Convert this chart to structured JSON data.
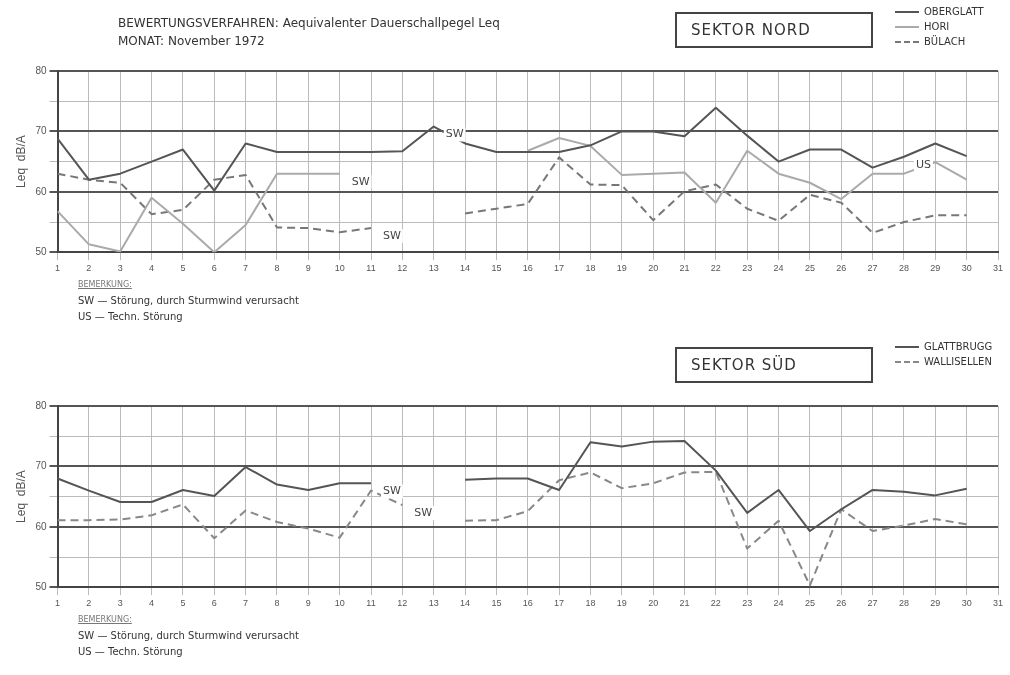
{
  "chart_data": [
    {
      "type": "line",
      "title": "SEKTOR NORD",
      "subtitle": "BEWERTUNGSVERFAHREN: Aequivalenter Dauerschallpegel Leq\nMONAT:   November 1972",
      "ylabel": "Leq  dB/A",
      "x": [
        1,
        2,
        3,
        4,
        5,
        6,
        7,
        8,
        9,
        10,
        11,
        12,
        13,
        14,
        15,
        16,
        17,
        18,
        19,
        20,
        21,
        22,
        23,
        24,
        25,
        26,
        27,
        28,
        29,
        30
      ],
      "series": [
        {
          "name": "OBERGLATT",
          "color": "#555555",
          "line_style": "solid",
          "values": [
            68.8,
            62,
            63,
            65,
            67,
            60.2,
            68,
            66.6,
            66.6,
            66.6,
            66.6,
            66.7,
            70.8,
            68,
            66.6,
            66.6,
            66.6,
            67.7,
            70,
            70,
            69.2,
            73.9,
            69.3,
            65,
            67,
            67,
            64,
            65.8,
            68,
            65.9
          ]
        },
        {
          "name": "HORI",
          "color": "#aaaaaa",
          "line_style": "solid",
          "values": [
            56.8,
            51.3,
            50.1,
            59,
            54.7,
            50,
            54.5,
            63,
            63,
            63,
            null,
            null,
            null,
            null,
            null,
            66.8,
            68.9,
            67.6,
            62.8,
            63,
            63.2,
            58.2,
            66.8,
            63,
            61.5,
            58.8,
            63,
            63,
            64.9,
            62
          ]
        },
        {
          "name": "BÜLACH",
          "color": "#777777",
          "line_style": "dashed",
          "values": [
            63,
            62,
            61.5,
            56.3,
            57,
            62,
            62.8,
            54.1,
            54,
            53.3,
            54,
            null,
            null,
            56.4,
            57.2,
            58,
            65.7,
            61.2,
            61.1,
            55.3,
            60.1,
            61.2,
            57.2,
            55.2,
            59.5,
            58.2,
            53.2,
            55,
            56.1,
            56.1
          ]
        }
      ],
      "xlim": [
        1,
        31
      ],
      "xticks": [
        1,
        2,
        3,
        4,
        5,
        6,
        7,
        8,
        9,
        10,
        11,
        12,
        13,
        14,
        15,
        16,
        17,
        18,
        19,
        20,
        21,
        22,
        23,
        24,
        25,
        26,
        27,
        28,
        29,
        30,
        31
      ],
      "ylim": [
        50,
        80
      ],
      "yticks": [
        50,
        {
          "value": 55,
          "label": null
        },
        60,
        {
          "value": 65,
          "label": null
        },
        70,
        {
          "value": 75,
          "label": null
        },
        80
      ],
      "grid": true,
      "legend": "top right",
      "marker": "none",
      "annotations": [
        {
          "text": "SW",
          "x": 10,
          "y": 63
        },
        {
          "text": "SW",
          "x": 11,
          "y": 54
        },
        {
          "text": "SW",
          "x": 13,
          "y": 70.8
        },
        {
          "text": "US",
          "x": 28,
          "y": 65.8
        },
        "BEMERKUNG:",
        "SW — Störung, durch Sturmwind verursacht",
        "US — Techn. Störung"
      ]
    },
    {
      "type": "line",
      "title": "SEKTOR SÜD",
      "ylabel": "Leq  dB/A",
      "x": [
        1,
        2,
        3,
        4,
        5,
        6,
        7,
        8,
        9,
        10,
        11,
        12,
        13,
        14,
        15,
        16,
        17,
        18,
        19,
        20,
        21,
        22,
        23,
        24,
        25,
        26,
        27,
        28,
        29,
        30
      ],
      "series": [
        {
          "name": "GLATTBRUGG",
          "color": "#555555",
          "line_style": "solid",
          "values": [
            68,
            66,
            64.1,
            64.1,
            66.1,
            65.1,
            69.9,
            67,
            66.1,
            67.2,
            67.2,
            null,
            null,
            67.8,
            68,
            68,
            66.1,
            74,
            73.3,
            74.1,
            74.2,
            69.3,
            62.3,
            66.1,
            59.3,
            62.9,
            66.1,
            65.8,
            65.2,
            66.3
          ]
        },
        {
          "name": "WALLISELLEN",
          "color": "#888888",
          "line_style": "dashed",
          "values": [
            61.1,
            61.1,
            61.2,
            61.9,
            63.7,
            58.1,
            62.7,
            60.8,
            59.7,
            58.2,
            66,
            63.6,
            null,
            61,
            61.1,
            62.6,
            67.7,
            69,
            66.4,
            67.2,
            69,
            69.1,
            56.4,
            61,
            50.3,
            62.9,
            59.3,
            60.2,
            61.3,
            60.4
          ]
        }
      ],
      "xlim": [
        1,
        31
      ],
      "xticks": [
        1,
        2,
        3,
        4,
        5,
        6,
        7,
        8,
        9,
        10,
        11,
        12,
        13,
        14,
        15,
        16,
        17,
        18,
        19,
        20,
        21,
        22,
        23,
        24,
        25,
        26,
        27,
        28,
        29,
        30,
        31
      ],
      "ylim": [
        50,
        80
      ],
      "yticks": [
        50,
        {
          "value": 55,
          "label": null
        },
        60,
        {
          "value": 65,
          "label": null
        },
        70,
        {
          "value": 75,
          "label": null
        },
        80
      ],
      "grid": true,
      "legend": "top right",
      "marker": "none",
      "annotations": [
        {
          "text": "SW",
          "x": 11,
          "y": 67.2
        },
        {
          "text": "SW",
          "x": 12,
          "y": 63.6
        },
        "BEMERKUNG:",
        "SW — Störung, durch Sturmwind verursacht",
        "US — Techn. Störung"
      ]
    }
  ]
}
